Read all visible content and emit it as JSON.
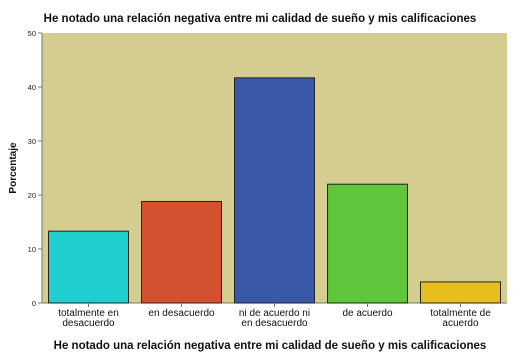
{
  "chart_data": {
    "type": "bar",
    "title": "He notado una relación negativa entre mi calidad de sueño y mis calificaciones",
    "xlabel": "He notado una relación negativa entre mi calidad de sueño y mis calificaciones",
    "ylabel": "Porcentaje",
    "ylim": [
      0,
      50
    ],
    "yticks": [
      "0",
      "10",
      "20",
      "30",
      "40",
      "50"
    ],
    "categories": [
      [
        "totalmente en",
        "desacuerdo"
      ],
      [
        "en desacuerdo"
      ],
      [
        "ni de acuerdo ni",
        "en desacuerdo"
      ],
      [
        "de acuerdo"
      ],
      [
        "totalmente de",
        "acuerdo"
      ]
    ],
    "values": [
      13.3,
      18.8,
      41.7,
      22.0,
      3.9
    ],
    "bar_colors": [
      "#1fcfcf",
      "#d4512f",
      "#3a58a8",
      "#5fc53a",
      "#e6bf1e"
    ],
    "plot_background": "#d4cd8f",
    "grid": false,
    "legend": "none"
  }
}
